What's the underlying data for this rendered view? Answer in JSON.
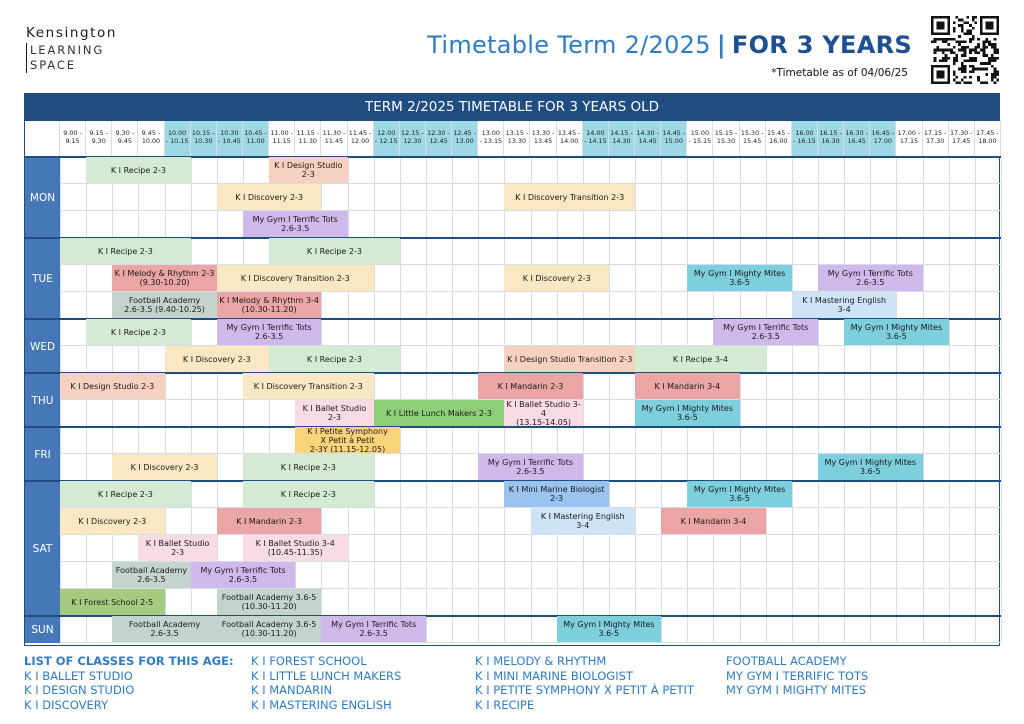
{
  "logo": {
    "line1": "Kensington",
    "line2": "LEARNING",
    "line3": "SPACE"
  },
  "header": {
    "title_main": "Timetable Term 2/2025",
    "title_sep": "|",
    "title_bold": "FOR 3 YEARS",
    "subtitle": "*Timetable as of 04/06/25"
  },
  "banner": "TERM 2/2025 TIMETABLE FOR 3 YEARS OLD",
  "times": [
    "9.00 -\n9.15",
    "9.15 -\n9.30",
    "9.30 -\n9.45",
    "9.45 -\n10.00",
    "10.00\n- 10.15",
    "10.15 -\n10.30",
    "10.30\n- 10.45",
    "10.45 -\n11.00",
    "11.00 -\n11.15",
    "11.15 -\n11.30",
    "11.30 -\n11.45",
    "11.45 -\n12.00",
    "12.00\n- 12.15",
    "12.15 -\n12.30",
    "12.30 -\n12.45",
    "12.45 -\n13.00",
    "13.00\n- 13.15",
    "13.15 -\n13.30",
    "13.30 -\n13.45",
    "13.45 -\n14.00",
    "14.00\n- 14.15",
    "14.15 -\n14.30",
    "14.30 -\n14.45",
    "14.45 -\n15.00",
    "15.00\n- 15.15",
    "15.15 -\n15.30",
    "15.30 -\n15.45",
    "15.45 -\n16.00",
    "16.00\n- 16.15",
    "16.15 -\n16.30",
    "16.30 -\n16.45",
    "16.45 -\n17.00",
    "17.00 -\n17.15",
    "17.15 -\n17.30",
    "17.30 -\n17.45",
    "17.45 -\n18.00"
  ],
  "days": [
    {
      "label": "MON",
      "rows": 3
    },
    {
      "label": "TUE",
      "rows": 3
    },
    {
      "label": "WED",
      "rows": 2
    },
    {
      "label": "THU",
      "rows": 2
    },
    {
      "label": "FRI",
      "rows": 2
    },
    {
      "label": "SAT",
      "rows": 5
    },
    {
      "label": "SUN",
      "rows": 1
    }
  ],
  "colors": {
    "green": "#d3ebd3",
    "peach": "#f6d1c0",
    "yellow": "#fae7c4",
    "purple": "#cfb9eb",
    "red": "#eba5a4",
    "gray": "#c5d3cd",
    "teal": "#7ecfdd",
    "blue": "#9ac4ef",
    "lightblue": "#cfe3f6",
    "pink": "#f8dbe3",
    "brightgreen": "#8fce79",
    "gold": "#fad47a",
    "olive": "#a5cb80",
    "hdr_a": "#ffffff",
    "hdr_b": "#9fd8e5"
  },
  "classes": [
    {
      "row": 0,
      "s": 1,
      "e": 5,
      "c": "green",
      "label": "K I Recipe 2-3"
    },
    {
      "row": 0,
      "s": 8,
      "e": 11,
      "c": "peach",
      "label": "K I Design Studio 2-3"
    },
    {
      "row": 1,
      "s": 6,
      "e": 10,
      "c": "yellow",
      "label": "K I Discovery 2-3"
    },
    {
      "row": 1,
      "s": 17,
      "e": 22,
      "c": "yellow",
      "label": "K I Discovery Transition 2-3"
    },
    {
      "row": 2,
      "s": 7,
      "e": 11,
      "c": "purple",
      "label": "My Gym I Terrific Tots\n2.6-3.5"
    },
    {
      "row": 3,
      "s": 0,
      "e": 5,
      "c": "green",
      "label": "K I Recipe 2-3"
    },
    {
      "row": 3,
      "s": 8,
      "e": 13,
      "c": "green",
      "label": "K I Recipe 2-3"
    },
    {
      "row": 4,
      "s": 2,
      "e": 6,
      "c": "red",
      "label": "K I Melody & Rhythm 2-3\n(9.30-10.20)"
    },
    {
      "row": 4,
      "s": 6,
      "e": 12,
      "c": "yellow",
      "label": "K I Discovery Transition 2-3"
    },
    {
      "row": 4,
      "s": 17,
      "e": 21,
      "c": "yellow",
      "label": "K I Discovery 2-3"
    },
    {
      "row": 4,
      "s": 24,
      "e": 28,
      "c": "teal",
      "label": "My Gym I Mighty Mites\n3.6-5"
    },
    {
      "row": 4,
      "s": 29,
      "e": 33,
      "c": "purple",
      "label": "My Gym I Terrific Tots\n2.6-3.5"
    },
    {
      "row": 5,
      "s": 2,
      "e": 6,
      "c": "gray",
      "label": "Football Academy\n2.6-3.5 (9.40-10.25)"
    },
    {
      "row": 5,
      "s": 6,
      "e": 10,
      "c": "red",
      "label": "K I Melody & Rhythm 3-4\n(10.30-11.20)"
    },
    {
      "row": 5,
      "s": 28,
      "e": 32,
      "c": "lightblue",
      "label": "K I Mastering English\n3-4"
    },
    {
      "row": 6,
      "s": 1,
      "e": 5,
      "c": "green",
      "label": "K I Recipe 2-3"
    },
    {
      "row": 6,
      "s": 6,
      "e": 10,
      "c": "purple",
      "label": "My Gym I Terrific Tots\n2.6-3.5"
    },
    {
      "row": 6,
      "s": 25,
      "e": 29,
      "c": "purple",
      "label": "My Gym I Terrific Tots\n2.6-3.5"
    },
    {
      "row": 6,
      "s": 30,
      "e": 34,
      "c": "teal",
      "label": "My Gym I Mighty Mites\n3.6-5"
    },
    {
      "row": 7,
      "s": 4,
      "e": 8,
      "c": "yellow",
      "label": "K I Discovery 2-3"
    },
    {
      "row": 7,
      "s": 8,
      "e": 13,
      "c": "green",
      "label": "K I Recipe 2-3"
    },
    {
      "row": 7,
      "s": 17,
      "e": 22,
      "c": "peach",
      "label": "K I Design Studio Transition 2-3"
    },
    {
      "row": 7,
      "s": 22,
      "e": 27,
      "c": "green",
      "label": "K I Recipe 3-4"
    },
    {
      "row": 8,
      "s": 0,
      "e": 4,
      "c": "peach",
      "label": "K I Design Studio 2-3"
    },
    {
      "row": 8,
      "s": 7,
      "e": 12,
      "c": "yellow",
      "label": "K I Discovery Transition 2-3"
    },
    {
      "row": 8,
      "s": 16,
      "e": 20,
      "c": "red",
      "label": "K I Mandarin 2-3"
    },
    {
      "row": 8,
      "s": 22,
      "e": 26,
      "c": "red",
      "label": "K I Mandarin 3-4"
    },
    {
      "row": 9,
      "s": 9,
      "e": 12,
      "c": "pink",
      "label": "K I Ballet Studio\n2-3"
    },
    {
      "row": 9,
      "s": 12,
      "e": 17,
      "c": "brightgreen",
      "label": "K I Little Lunch Makers 2-3"
    },
    {
      "row": 9,
      "s": 17,
      "e": 20,
      "c": "pink",
      "label": "K I Ballet Studio 3-4\n(13.15-14.05)"
    },
    {
      "row": 9,
      "s": 22,
      "e": 26,
      "c": "teal",
      "label": "My Gym I Mighty Mites\n3.6-5"
    },
    {
      "row": 10,
      "s": 9,
      "e": 13,
      "c": "gold",
      "label": "K I Petite Symphony\nX Petit à Petit\n2-3Y (11.15-12.05)"
    },
    {
      "row": 11,
      "s": 2,
      "e": 6,
      "c": "yellow",
      "label": "K I Discovery 2-3"
    },
    {
      "row": 11,
      "s": 7,
      "e": 12,
      "c": "green",
      "label": "K I Recipe 2-3"
    },
    {
      "row": 11,
      "s": 16,
      "e": 20,
      "c": "purple",
      "label": "My Gym I Terrific Tots\n2.6-3.5"
    },
    {
      "row": 11,
      "s": 29,
      "e": 33,
      "c": "teal",
      "label": "My Gym I Mighty Mites\n3.6-5"
    },
    {
      "row": 12,
      "s": 0,
      "e": 5,
      "c": "green",
      "label": "K I Recipe 2-3"
    },
    {
      "row": 12,
      "s": 7,
      "e": 12,
      "c": "green",
      "label": "K I Recipe 2-3"
    },
    {
      "row": 12,
      "s": 17,
      "e": 21,
      "c": "blue",
      "label": "K I Mini Marine Biologist\n2-3"
    },
    {
      "row": 12,
      "s": 24,
      "e": 28,
      "c": "teal",
      "label": "My Gym I Mighty Mites\n3.6-5"
    },
    {
      "row": 13,
      "s": 0,
      "e": 4,
      "c": "yellow",
      "label": "K I Discovery 2-3"
    },
    {
      "row": 13,
      "s": 6,
      "e": 10,
      "c": "red",
      "label": "K I Mandarin 2-3"
    },
    {
      "row": 13,
      "s": 18,
      "e": 22,
      "c": "lightblue",
      "label": "K I Mastering English\n3-4"
    },
    {
      "row": 13,
      "s": 23,
      "e": 27,
      "c": "red",
      "label": "K I Mandarin 3-4"
    },
    {
      "row": 14,
      "s": 3,
      "e": 6,
      "c": "pink",
      "label": "K I Ballet Studio\n2-3"
    },
    {
      "row": 14,
      "s": 7,
      "e": 11,
      "c": "pink",
      "label": "K I Ballet Studio 3-4\n(10.45-11.35)"
    },
    {
      "row": 15,
      "s": 2,
      "e": 5,
      "c": "gray",
      "label": "Football Academy\n2.6-3.5"
    },
    {
      "row": 15,
      "s": 5,
      "e": 9,
      "c": "purple",
      "label": "My Gym I Terrific Tots\n2.6-3.5"
    },
    {
      "row": 16,
      "s": 0,
      "e": 4,
      "c": "olive",
      "label": "K I Forest School 2-5"
    },
    {
      "row": 16,
      "s": 6,
      "e": 10,
      "c": "gray",
      "label": "Football Academy 3.6-5\n(10.30-11.20)"
    },
    {
      "row": 17,
      "s": 2,
      "e": 6,
      "c": "gray",
      "label": "Football Academy\n2.6-3.5"
    },
    {
      "row": 17,
      "s": 6,
      "e": 10,
      "c": "gray",
      "label": "Football Academy 3.6-5\n(10.30-11.20)"
    },
    {
      "row": 17,
      "s": 10,
      "e": 14,
      "c": "purple",
      "label": "My Gym I Terrific Tots\n2.6-3.5"
    },
    {
      "row": 17,
      "s": 19,
      "e": 23,
      "c": "teal",
      "label": "My Gym I Mighty Mites\n3.6-5"
    }
  ],
  "footer": {
    "heading": "LIST OF CLASSES FOR THIS AGE:",
    "col1": [
      "K I BALLET STUDIO",
      "K I DESIGN STUDIO",
      "K I DISCOVERY"
    ],
    "col2": [
      "K I FOREST SCHOOL",
      "K I LITTLE LUNCH MAKERS",
      "K I MANDARIN",
      "K I MASTERING ENGLISH"
    ],
    "col3": [
      "K I MELODY & RHYTHM",
      "K I MINI MARINE BIOLOGIST",
      "K I PETITE SYMPHONY X PETIT À PETIT",
      "K I RECIPE"
    ],
    "col4": [
      "FOOTBALL ACADEMY",
      "MY GYM I TERRIFIC TOTS",
      "MY GYM I MIGHTY MITES"
    ]
  }
}
